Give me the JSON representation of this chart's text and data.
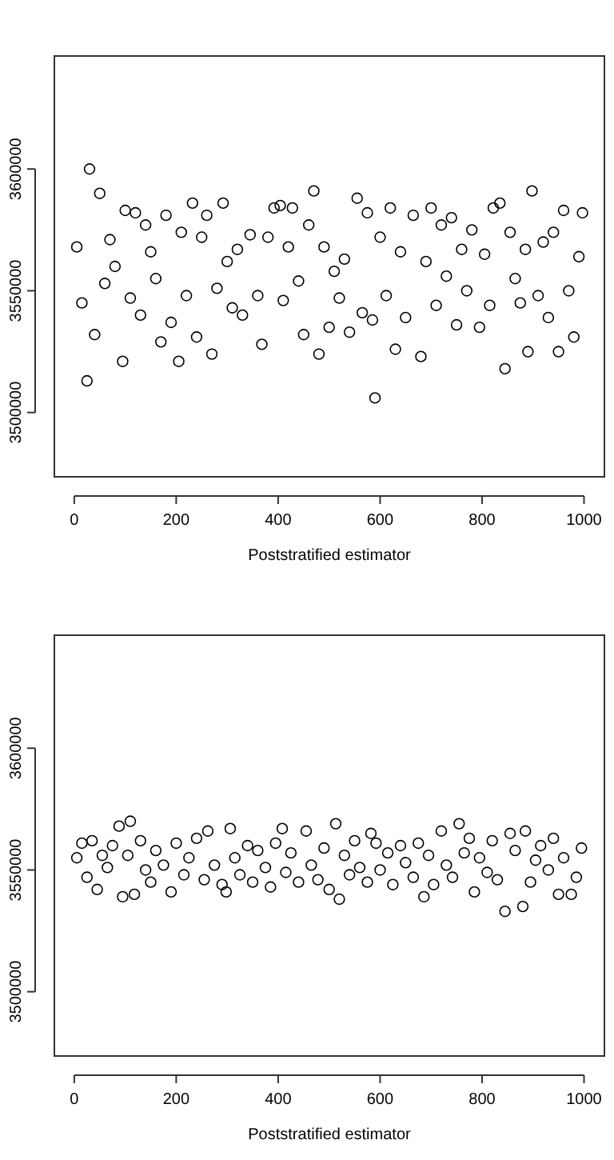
{
  "chart_data": [
    {
      "type": "scatter",
      "xlabel": "Poststratified estimator",
      "xlim": [
        -39,
        1040
      ],
      "ylim": [
        3473600,
        3646400
      ],
      "xticks": [
        0,
        200,
        400,
        600,
        800,
        1000
      ],
      "yticks": [
        3500000,
        3550000,
        3600000
      ],
      "marker": "circle",
      "series": [
        {
          "color": "#000000",
          "x": [
            5,
            15,
            25,
            30,
            40,
            50,
            60,
            70,
            80,
            95,
            100,
            110,
            120,
            130,
            140,
            150,
            160,
            170,
            180,
            190,
            205,
            210,
            220,
            232,
            240,
            250,
            260,
            270,
            280,
            292,
            300,
            310,
            320,
            330,
            345,
            360,
            368,
            380,
            392,
            404,
            410,
            420,
            428,
            440,
            450,
            460,
            470,
            480,
            490,
            500,
            510,
            520,
            530,
            540,
            555,
            565,
            575,
            585,
            590,
            600,
            612,
            620,
            630,
            640,
            650,
            665,
            680,
            690,
            700,
            710,
            720,
            730,
            740,
            750,
            760,
            770,
            780,
            795,
            805,
            815,
            822,
            835,
            845,
            855,
            865,
            875,
            885,
            890,
            898,
            910,
            920,
            930,
            940,
            950,
            960,
            970,
            980,
            990,
            997
          ],
          "values": [
            3568000,
            3545000,
            3513000,
            3600000,
            3532000,
            3590000,
            3553000,
            3571000,
            3560000,
            3521000,
            3583000,
            3547000,
            3582000,
            3540000,
            3577000,
            3566000,
            3555000,
            3529000,
            3581000,
            3537000,
            3521000,
            3574000,
            3548000,
            3586000,
            3531000,
            3572000,
            3581000,
            3524000,
            3551000,
            3586000,
            3562000,
            3543000,
            3567000,
            3540000,
            3573000,
            3548000,
            3528000,
            3572000,
            3584000,
            3585000,
            3546000,
            3568000,
            3584000,
            3554000,
            3532000,
            3577000,
            3591000,
            3524000,
            3568000,
            3535000,
            3558000,
            3547000,
            3563000,
            3533000,
            3588000,
            3541000,
            3582000,
            3538000,
            3506000,
            3572000,
            3548000,
            3584000,
            3526000,
            3566000,
            3539000,
            3581000,
            3523000,
            3562000,
            3584000,
            3544000,
            3577000,
            3556000,
            3580000,
            3536000,
            3567000,
            3550000,
            3575000,
            3535000,
            3565000,
            3544000,
            3584000,
            3586000,
            3518000,
            3574000,
            3555000,
            3545000,
            3567000,
            3525000,
            3591000,
            3548000,
            3570000,
            3539000,
            3574000,
            3525000,
            3583000,
            3550000,
            3531000,
            3564000,
            3582000
          ]
        }
      ]
    },
    {
      "type": "scatter",
      "xlabel": "Poststratified estimator",
      "xlim": [
        -39,
        1040
      ],
      "ylim": [
        3473600,
        3646400
      ],
      "xticks": [
        0,
        200,
        400,
        600,
        800,
        1000
      ],
      "yticks": [
        3500000,
        3550000,
        3600000
      ],
      "marker": "circle",
      "series": [
        {
          "color": "#000000",
          "x": [
            5,
            15,
            25,
            35,
            45,
            55,
            65,
            75,
            88,
            95,
            105,
            110,
            118,
            130,
            140,
            150,
            160,
            175,
            190,
            200,
            215,
            225,
            240,
            255,
            262,
            275,
            290,
            298,
            306,
            315,
            325,
            340,
            350,
            360,
            375,
            385,
            395,
            408,
            415,
            425,
            440,
            455,
            465,
            478,
            490,
            500,
            513,
            520,
            530,
            540,
            550,
            560,
            575,
            582,
            592,
            600,
            615,
            625,
            640,
            650,
            665,
            675,
            686,
            695,
            705,
            720,
            730,
            742,
            755,
            765,
            775,
            785,
            795,
            810,
            820,
            830,
            845,
            855,
            865,
            880,
            885,
            895,
            905,
            915,
            930,
            940,
            950,
            960,
            975,
            985,
            995
          ],
          "values": [
            3555000,
            3561000,
            3547000,
            3562000,
            3542000,
            3556000,
            3551000,
            3560000,
            3568000,
            3539000,
            3556000,
            3570000,
            3540000,
            3562000,
            3550000,
            3545000,
            3558000,
            3552000,
            3541000,
            3561000,
            3548000,
            3555000,
            3563000,
            3546000,
            3566000,
            3552000,
            3544000,
            3541000,
            3567000,
            3555000,
            3548000,
            3560000,
            3545000,
            3558000,
            3551000,
            3543000,
            3561000,
            3567000,
            3549000,
            3557000,
            3545000,
            3566000,
            3552000,
            3546000,
            3559000,
            3542000,
            3569000,
            3538000,
            3556000,
            3548000,
            3562000,
            3551000,
            3545000,
            3565000,
            3561000,
            3550000,
            3557000,
            3544000,
            3560000,
            3553000,
            3547000,
            3561000,
            3539000,
            3556000,
            3544000,
            3566000,
            3552000,
            3547000,
            3569000,
            3557000,
            3563000,
            3541000,
            3555000,
            3549000,
            3562000,
            3546000,
            3533000,
            3565000,
            3558000,
            3535000,
            3566000,
            3545000,
            3554000,
            3560000,
            3550000,
            3563000,
            3540000,
            3555000,
            3540000,
            3547000,
            3559000
          ]
        }
      ]
    }
  ]
}
